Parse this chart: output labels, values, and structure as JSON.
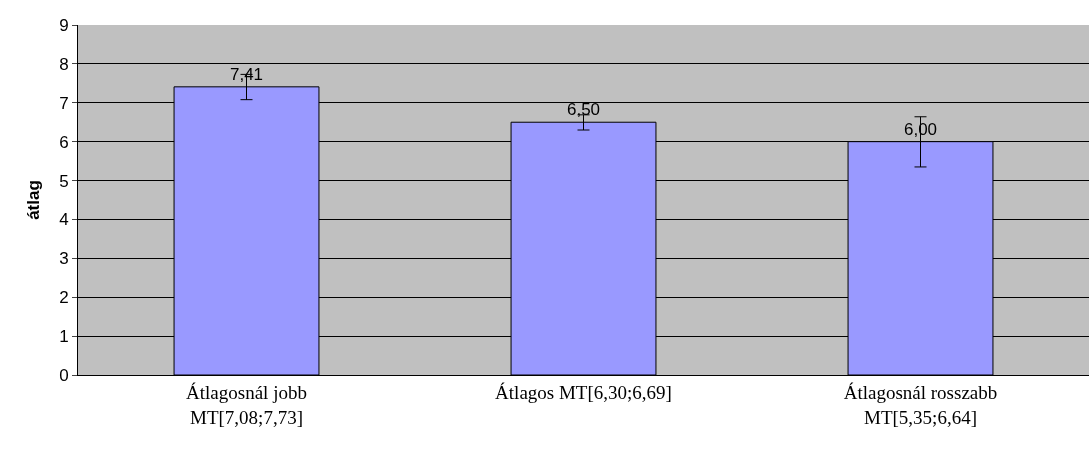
{
  "chart_data": {
    "type": "bar",
    "ylabel": "átlag",
    "categories": [
      "Átlagosnál jobb\nMT[7,08;7,73]",
      "Átlagos MT[6,30;6,69]",
      "Átlagosnál rosszabb\nMT[5,35;6,64]"
    ],
    "values": [
      7.41,
      6.5,
      6.0
    ],
    "color": "#9999ff",
    "value_labels": [
      "7,41",
      "6,50",
      "6,00"
    ],
    "errors": [
      [
        7.08,
        7.73
      ],
      [
        6.3,
        6.69
      ],
      [
        5.35,
        6.64
      ]
    ],
    "ylim": [
      0,
      9
    ],
    "yticks": [
      0,
      1,
      2,
      3,
      4,
      5,
      6,
      7,
      8,
      9
    ],
    "grid": "y",
    "legend": false
  }
}
